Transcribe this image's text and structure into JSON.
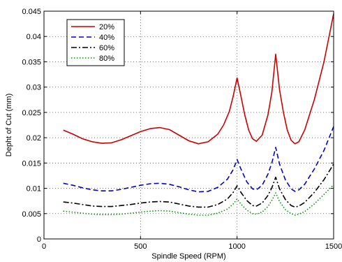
{
  "chart_data": {
    "type": "line",
    "xlabel": "Spindle Speed (RPM)",
    "ylabel": "Depht of Cut (mm)",
    "xlim": [
      0,
      1500
    ],
    "ylim": [
      0,
      0.045
    ],
    "xticks": [
      0,
      500,
      1000,
      1500
    ],
    "yticks": [
      0,
      0.005,
      0.01,
      0.015,
      0.02,
      0.025,
      0.03,
      0.035,
      0.04,
      0.045
    ],
    "xtick_labels": [
      "0",
      "500",
      "1000",
      "1500"
    ],
    "ytick_labels": [
      "0",
      "0.005",
      "0.01",
      "0.015",
      "0.02",
      "0.025",
      "0.03",
      "0.035",
      "0.04",
      "0.045"
    ],
    "grid": true,
    "legend_position": "top-left",
    "series": [
      {
        "name": "20%",
        "color": "#cc0000",
        "dash": "solid",
        "x": [
          100,
          150,
          200,
          250,
          300,
          350,
          400,
          450,
          500,
          550,
          600,
          650,
          700,
          750,
          800,
          850,
          900,
          930,
          960,
          980,
          1000,
          1020,
          1040,
          1060,
          1080,
          1100,
          1130,
          1160,
          1180,
          1200,
          1220,
          1240,
          1260,
          1280,
          1300,
          1320,
          1350,
          1400,
          1450,
          1500
        ],
        "y": [
          0.0215,
          0.0207,
          0.0198,
          0.0192,
          0.0189,
          0.019,
          0.0196,
          0.0204,
          0.0212,
          0.0218,
          0.022,
          0.0216,
          0.0205,
          0.0194,
          0.0188,
          0.0192,
          0.0207,
          0.0225,
          0.0252,
          0.0282,
          0.0318,
          0.0282,
          0.0245,
          0.0215,
          0.0198,
          0.0193,
          0.0205,
          0.0245,
          0.029,
          0.0365,
          0.0295,
          0.025,
          0.0215,
          0.0195,
          0.0188,
          0.0192,
          0.0215,
          0.0275,
          0.035,
          0.0445
        ]
      },
      {
        "name": "40%",
        "color": "#0000cc",
        "dash": "dashed",
        "x": [
          100,
          150,
          200,
          250,
          300,
          350,
          400,
          450,
          500,
          550,
          600,
          650,
          700,
          750,
          800,
          850,
          900,
          950,
          980,
          1000,
          1020,
          1050,
          1080,
          1100,
          1130,
          1160,
          1180,
          1200,
          1220,
          1250,
          1280,
          1300,
          1320,
          1350,
          1400,
          1450,
          1500
        ],
        "y": [
          0.011,
          0.0106,
          0.0101,
          0.0097,
          0.0095,
          0.0095,
          0.0098,
          0.0102,
          0.0106,
          0.0109,
          0.011,
          0.0108,
          0.0103,
          0.0097,
          0.0093,
          0.0094,
          0.0102,
          0.0118,
          0.0137,
          0.0157,
          0.0138,
          0.0113,
          0.0099,
          0.0097,
          0.0106,
          0.0128,
          0.015,
          0.0181,
          0.0148,
          0.0117,
          0.0099,
          0.0094,
          0.0097,
          0.0108,
          0.0138,
          0.0175,
          0.0222
        ]
      },
      {
        "name": "60%",
        "color": "#000000",
        "dash": "dashdot",
        "x": [
          100,
          150,
          200,
          250,
          300,
          350,
          400,
          450,
          500,
          550,
          600,
          650,
          700,
          750,
          800,
          850,
          900,
          950,
          980,
          1000,
          1020,
          1050,
          1080,
          1100,
          1130,
          1160,
          1180,
          1200,
          1220,
          1250,
          1280,
          1300,
          1320,
          1350,
          1400,
          1450,
          1500
        ],
        "y": [
          0.0073,
          0.0071,
          0.0068,
          0.0065,
          0.0064,
          0.0064,
          0.0066,
          0.0068,
          0.0071,
          0.0073,
          0.0074,
          0.0073,
          0.0069,
          0.0065,
          0.0063,
          0.0063,
          0.0068,
          0.0079,
          0.0092,
          0.0105,
          0.0092,
          0.0076,
          0.0066,
          0.0065,
          0.0071,
          0.0086,
          0.0101,
          0.0122,
          0.0099,
          0.0078,
          0.0066,
          0.0063,
          0.0065,
          0.0072,
          0.0092,
          0.0117,
          0.0148
        ]
      },
      {
        "name": "80%",
        "color": "#009900",
        "dash": "dotted",
        "x": [
          100,
          150,
          200,
          250,
          300,
          350,
          400,
          450,
          500,
          550,
          600,
          650,
          700,
          750,
          800,
          850,
          900,
          950,
          980,
          1000,
          1020,
          1050,
          1080,
          1100,
          1130,
          1160,
          1180,
          1200,
          1220,
          1250,
          1280,
          1300,
          1320,
          1350,
          1400,
          1450,
          1500
        ],
        "y": [
          0.0055,
          0.0053,
          0.0051,
          0.0049,
          0.0048,
          0.0048,
          0.0049,
          0.0051,
          0.0053,
          0.0055,
          0.0056,
          0.0055,
          0.0052,
          0.0049,
          0.0047,
          0.0047,
          0.0051,
          0.0059,
          0.0069,
          0.0079,
          0.0069,
          0.0057,
          0.005,
          0.0049,
          0.0053,
          0.0064,
          0.0076,
          0.0091,
          0.0074,
          0.0058,
          0.005,
          0.0047,
          0.0049,
          0.0054,
          0.0069,
          0.0088,
          0.0107
        ]
      }
    ]
  }
}
